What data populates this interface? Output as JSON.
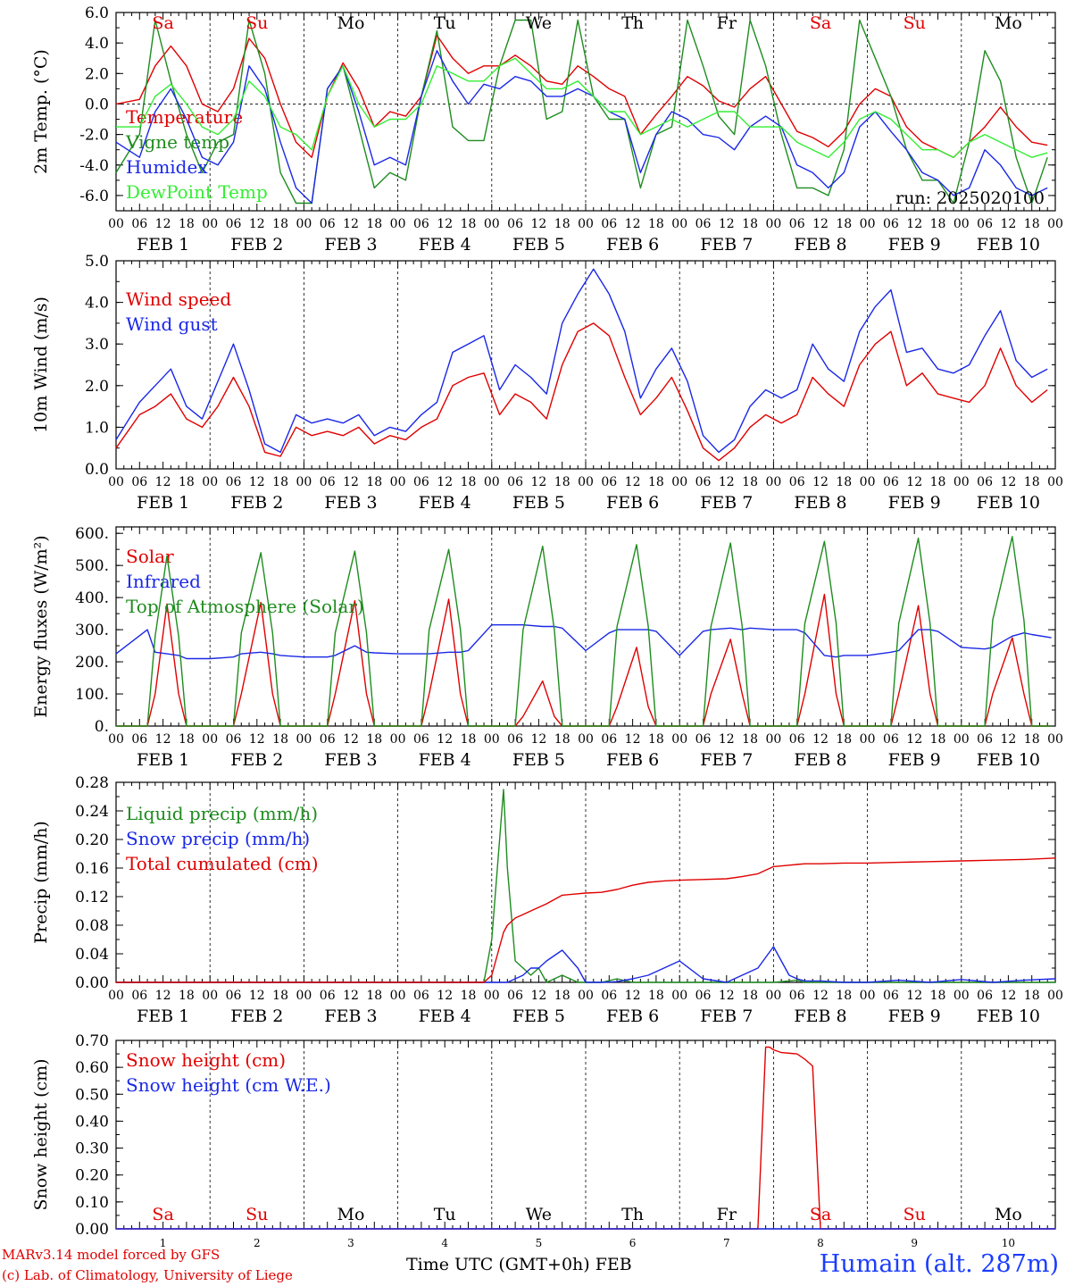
{
  "colors": {
    "red": "#e00000",
    "green": "#1e8c1e",
    "blue": "#1a28e6",
    "lightgreen": "#33ee33"
  },
  "hour_labels": [
    "00",
    "06",
    "12",
    "18"
  ],
  "end_hour_label": "00",
  "days": [
    {
      "date": "FEB  1",
      "num": "1",
      "dow": "Sa",
      "weekend": true
    },
    {
      "date": "FEB  2",
      "num": "2",
      "dow": "Su",
      "weekend": true
    },
    {
      "date": "FEB  3",
      "num": "3",
      "dow": "Mo",
      "weekend": false
    },
    {
      "date": "FEB  4",
      "num": "4",
      "dow": "Tu",
      "weekend": false
    },
    {
      "date": "FEB  5",
      "num": "5",
      "dow": "We",
      "weekend": false
    },
    {
      "date": "FEB  6",
      "num": "6",
      "dow": "Th",
      "weekend": false
    },
    {
      "date": "FEB  7",
      "num": "7",
      "dow": "Fr",
      "weekend": false
    },
    {
      "date": "FEB  8",
      "num": "8",
      "dow": "Sa",
      "weekend": true
    },
    {
      "date": "FEB  9",
      "num": "9",
      "dow": "Su",
      "weekend": true
    },
    {
      "date": "FEB 10",
      "num": "10",
      "dow": "Mo",
      "weekend": false
    }
  ],
  "footer": {
    "credit1": "MARv3.14 model forced by GFS",
    "credit2": "(c) Lab. of Climatology, University of Liege",
    "xlabel": "Time UTC (GMT+0h) FEB",
    "station": "Humain (alt. 287m)"
  },
  "chart_data": [
    {
      "type": "line",
      "ylabel": "2m Temp. (°C)",
      "ylim": [
        -7,
        6
      ],
      "yticks": [
        "6.0",
        "4.0",
        "2.0",
        "0.0",
        "-2.0",
        "-4.0",
        "-6.0"
      ],
      "ytick_values": [
        6,
        4,
        2,
        0,
        -2,
        -4,
        -6
      ],
      "zero_line": true,
      "annotation": "run: 2025020100",
      "x_hours": [
        0,
        6,
        10,
        14,
        18,
        22,
        26,
        30,
        34,
        38,
        42,
        46,
        50,
        54,
        58,
        62,
        66,
        70,
        74,
        78,
        82,
        86,
        90,
        94,
        98,
        102,
        106,
        110,
        114,
        118,
        122,
        126,
        130,
        134,
        138,
        142,
        146,
        150,
        154,
        158,
        162,
        166,
        170,
        174,
        178,
        182,
        186,
        190,
        194,
        198,
        202,
        206,
        210,
        214,
        218,
        222,
        226,
        230,
        234,
        238
      ],
      "series": [
        {
          "name": "Temperature",
          "color": "red",
          "values": [
            0.0,
            0.3,
            2.5,
            3.8,
            2.5,
            0.0,
            -0.5,
            1.0,
            4.3,
            3.0,
            0.0,
            -2.5,
            -3.5,
            0.5,
            2.7,
            1.0,
            -1.5,
            -0.5,
            -0.8,
            0.5,
            4.5,
            3.0,
            2.0,
            2.5,
            2.5,
            3.2,
            2.5,
            1.5,
            1.3,
            2.5,
            1.8,
            1.0,
            0.5,
            -2.0,
            -0.7,
            0.5,
            1.8,
            1.2,
            0.2,
            -0.2,
            1.0,
            1.8,
            0.0,
            -1.8,
            -2.2,
            -2.8,
            -1.8,
            0.0,
            1.0,
            0.5,
            -1.5,
            -2.5,
            -3.0,
            -3.5,
            -2.5,
            -1.5,
            -0.2,
            -1.5,
            -2.5,
            -2.7
          ]
        },
        {
          "name": "Vigne temp",
          "color": "green",
          "values": [
            -4.5,
            -2.0,
            5.5,
            1.5,
            -2.0,
            -4.5,
            -2.5,
            -2.0,
            5.5,
            2.0,
            -4.5,
            -6.5,
            -6.5,
            1.0,
            2.5,
            -1.5,
            -5.5,
            -4.5,
            -5.0,
            0.5,
            4.8,
            -1.5,
            -2.4,
            -2.4,
            2.5,
            5.5,
            5.5,
            -1.0,
            -0.5,
            5.5,
            0.5,
            -1.0,
            -1.0,
            -5.5,
            -2.0,
            -1.5,
            5.5,
            2.5,
            -0.8,
            -2.0,
            5.5,
            2.5,
            -2.0,
            -5.5,
            -5.5,
            -6.0,
            -3.0,
            5.5,
            3.0,
            0.5,
            -3.0,
            -5.0,
            -5.0,
            -6.5,
            -2.5,
            3.5,
            1.5,
            -3.5,
            -6.5,
            -3.5
          ]
        },
        {
          "name": "Humidex",
          "color": "blue",
          "values": [
            -2.5,
            -3.5,
            -0.5,
            1.0,
            -1.0,
            -3.5,
            -4.0,
            -2.5,
            2.5,
            1.0,
            -2.5,
            -5.5,
            -6.5,
            1.0,
            2.5,
            -0.5,
            -4.0,
            -3.5,
            -4.0,
            0.5,
            3.5,
            1.5,
            0.0,
            1.3,
            1.0,
            1.8,
            1.5,
            0.5,
            0.5,
            1.0,
            0.5,
            -0.5,
            -1.0,
            -4.5,
            -2.0,
            -0.5,
            -1.0,
            -2.0,
            -2.2,
            -3.0,
            -1.5,
            -0.8,
            -1.5,
            -4.0,
            -4.5,
            -5.5,
            -4.5,
            -1.5,
            -0.5,
            -1.8,
            -3.0,
            -4.5,
            -5.0,
            -6.0,
            -5.5,
            -3.0,
            -4.0,
            -5.5,
            -6.0,
            -5.5
          ]
        },
        {
          "name": "DewPoint Temp",
          "color": "lightgreen",
          "values": [
            -1.5,
            -1.5,
            0.5,
            1.3,
            0.0,
            -1.5,
            -2.0,
            -1.0,
            1.5,
            0.5,
            -1.5,
            -2.0,
            -3.0,
            0.5,
            2.5,
            0.0,
            -1.5,
            -1.0,
            -1.0,
            0.0,
            2.5,
            2.0,
            1.5,
            1.5,
            2.5,
            3.0,
            2.0,
            1.0,
            1.0,
            1.5,
            0.5,
            -0.5,
            -0.5,
            -2.0,
            -1.5,
            -1.0,
            -1.5,
            -1.0,
            -0.5,
            -0.5,
            -1.5,
            -1.5,
            -1.5,
            -2.5,
            -3.0,
            -3.5,
            -2.5,
            -1.0,
            -0.5,
            -1.0,
            -2.0,
            -3.0,
            -3.0,
            -3.5,
            -2.5,
            -2.0,
            -2.5,
            -3.0,
            -3.5,
            -3.2
          ]
        }
      ]
    },
    {
      "type": "line",
      "ylabel": "10m Wind (m/s)",
      "ylim": [
        0,
        5
      ],
      "yticks": [
        "5.0",
        "4.0",
        "3.0",
        "2.0",
        "1.0",
        "0.0"
      ],
      "ytick_values": [
        5,
        4,
        3,
        2,
        1,
        0
      ],
      "x_hours": [
        0,
        6,
        10,
        14,
        18,
        22,
        26,
        30,
        34,
        38,
        42,
        46,
        50,
        54,
        58,
        62,
        66,
        70,
        74,
        78,
        82,
        86,
        90,
        94,
        98,
        102,
        106,
        110,
        114,
        118,
        122,
        126,
        130,
        134,
        138,
        142,
        146,
        150,
        154,
        158,
        162,
        166,
        170,
        174,
        178,
        182,
        186,
        190,
        194,
        198,
        202,
        206,
        210,
        214,
        218,
        222,
        226,
        230,
        234,
        238
      ],
      "series": [
        {
          "name": "Wind speed",
          "color": "red",
          "values": [
            0.5,
            1.3,
            1.5,
            1.8,
            1.2,
            1.0,
            1.5,
            2.2,
            1.5,
            0.4,
            0.3,
            1.0,
            0.8,
            0.9,
            0.8,
            1.0,
            0.6,
            0.8,
            0.7,
            1.0,
            1.2,
            2.0,
            2.2,
            2.3,
            1.3,
            1.8,
            1.6,
            1.2,
            2.5,
            3.3,
            3.5,
            3.2,
            2.2,
            1.3,
            1.7,
            2.2,
            1.4,
            0.5,
            0.2,
            0.5,
            1.0,
            1.3,
            1.1,
            1.3,
            2.2,
            1.8,
            1.5,
            2.5,
            3.0,
            3.3,
            2.0,
            2.3,
            1.8,
            1.7,
            1.6,
            2.0,
            2.9,
            2.0,
            1.6,
            1.9
          ]
        },
        {
          "name": "Wind gust",
          "color": "blue",
          "values": [
            0.7,
            1.6,
            2.0,
            2.4,
            1.5,
            1.2,
            2.1,
            3.0,
            1.9,
            0.6,
            0.4,
            1.3,
            1.1,
            1.2,
            1.1,
            1.3,
            0.8,
            1.0,
            0.9,
            1.3,
            1.6,
            2.8,
            3.0,
            3.2,
            1.9,
            2.5,
            2.2,
            1.8,
            3.5,
            4.2,
            4.8,
            4.2,
            3.3,
            1.7,
            2.4,
            2.9,
            2.1,
            0.8,
            0.4,
            0.7,
            1.5,
            1.9,
            1.7,
            1.9,
            3.0,
            2.4,
            2.1,
            3.3,
            3.9,
            4.3,
            2.8,
            2.9,
            2.4,
            2.3,
            2.5,
            3.2,
            3.8,
            2.6,
            2.2,
            2.4
          ]
        }
      ]
    },
    {
      "type": "line",
      "ylabel": "Energy fluxes (W/m²)",
      "ylim": [
        0,
        620
      ],
      "yticks": [
        "600.",
        "500.",
        "400.",
        "300.",
        "200.",
        "100.",
        "0."
      ],
      "ytick_values": [
        600,
        500,
        400,
        300,
        200,
        100,
        0
      ],
      "x_hours": [
        0,
        8,
        10,
        13,
        16,
        18,
        24,
        30,
        32,
        37,
        40,
        42,
        48,
        54,
        56,
        61,
        64,
        66,
        72,
        78,
        80,
        85,
        88,
        90,
        96,
        102,
        104,
        109,
        112,
        114,
        120,
        126,
        128,
        133,
        136,
        138,
        144,
        150,
        152,
        157,
        160,
        162,
        168,
        174,
        176,
        181,
        184,
        186,
        192,
        198,
        200,
        205,
        208,
        210,
        216,
        222,
        224,
        229,
        232,
        234,
        239
      ],
      "series": [
        {
          "name": "Solar",
          "color": "red",
          "values": [
            0,
            0,
            100,
            380,
            100,
            0,
            0,
            0,
            100,
            385,
            100,
            0,
            0,
            0,
            100,
            390,
            100,
            0,
            0,
            0,
            100,
            395,
            100,
            0,
            0,
            0,
            30,
            140,
            30,
            0,
            0,
            0,
            60,
            245,
            60,
            0,
            0,
            0,
            100,
            270,
            100,
            0,
            0,
            0,
            100,
            410,
            100,
            0,
            0,
            0,
            100,
            375,
            100,
            0,
            0,
            0,
            100,
            275,
            100,
            0,
            0
          ]
        },
        {
          "name": "Infrared",
          "color": "blue",
          "values": [
            225,
            300,
            230,
            225,
            220,
            210,
            210,
            215,
            225,
            230,
            225,
            220,
            215,
            215,
            220,
            250,
            230,
            228,
            225,
            225,
            225,
            230,
            230,
            235,
            315,
            315,
            315,
            310,
            310,
            305,
            235,
            290,
            300,
            300,
            300,
            295,
            220,
            295,
            300,
            305,
            300,
            305,
            300,
            300,
            290,
            220,
            215,
            220,
            220,
            230,
            235,
            300,
            300,
            295,
            245,
            240,
            245,
            280,
            290,
            285,
            275
          ]
        },
        {
          "name": "Top of Atmosphere (Solar)",
          "color": "green",
          "values": [
            0,
            0,
            280,
            530,
            280,
            0,
            0,
            0,
            290,
            540,
            290,
            0,
            0,
            0,
            290,
            545,
            290,
            0,
            0,
            0,
            300,
            550,
            300,
            0,
            0,
            0,
            300,
            560,
            300,
            0,
            0,
            0,
            310,
            565,
            310,
            0,
            0,
            0,
            310,
            570,
            310,
            0,
            0,
            0,
            320,
            575,
            320,
            0,
            0,
            0,
            320,
            585,
            320,
            0,
            0,
            0,
            330,
            590,
            330,
            0,
            0
          ]
        }
      ]
    },
    {
      "type": "line",
      "ylabel": "Precip (mm/h)",
      "ylim": [
        0,
        0.28
      ],
      "yticks": [
        "0.28",
        "0.24",
        "0.20",
        "0.16",
        "0.12",
        "0.08",
        "0.04",
        "0.00"
      ],
      "ytick_values": [
        0.28,
        0.24,
        0.2,
        0.16,
        0.12,
        0.08,
        0.04,
        0
      ],
      "x_hours": [
        0,
        48,
        94,
        96,
        98,
        99,
        100,
        102,
        104,
        106,
        108,
        110,
        114,
        118,
        120,
        124,
        128,
        132,
        136,
        140,
        144,
        150,
        156,
        160,
        164,
        168,
        172,
        174,
        176,
        180,
        186,
        192,
        200,
        208,
        216,
        224,
        232,
        240
      ],
      "series": [
        {
          "name": "Liquid precip (mm/h)",
          "color": "green",
          "values": [
            0,
            0,
            0,
            0.06,
            0.2,
            0.27,
            0.16,
            0.03,
            0.02,
            0.01,
            0.02,
            0,
            0.01,
            0,
            0,
            0,
            0.005,
            0,
            0,
            0,
            0,
            0,
            0,
            0,
            0,
            0,
            0.002,
            0.003,
            0,
            0,
            0,
            0,
            0,
            0,
            0,
            0,
            0,
            0
          ]
        },
        {
          "name": "Snow precip (mm/h)",
          "color": "blue",
          "values": [
            0,
            0,
            0,
            0,
            0,
            0,
            0,
            0.005,
            0.01,
            0.02,
            0.02,
            0.03,
            0.045,
            0.02,
            0,
            0,
            0.001,
            0.005,
            0.01,
            0.02,
            0.03,
            0.005,
            0,
            0.01,
            0.02,
            0.05,
            0.01,
            0.005,
            0.002,
            0.002,
            0,
            0,
            0.003,
            0,
            0.004,
            0,
            0.003,
            0.005
          ]
        },
        {
          "name": "Total cumulated (cm)",
          "color": "red",
          "values": [
            0,
            0,
            0,
            0.01,
            0.05,
            0.07,
            0.08,
            0.09,
            0.095,
            0.1,
            0.105,
            0.11,
            0.122,
            0.124,
            0.125,
            0.126,
            0.13,
            0.136,
            0.14,
            0.142,
            0.143,
            0.144,
            0.145,
            0.148,
            0.152,
            0.162,
            0.164,
            0.165,
            0.166,
            0.166,
            0.167,
            0.167,
            0.168,
            0.169,
            0.17,
            0.171,
            0.172,
            0.174
          ]
        }
      ]
    },
    {
      "type": "line",
      "ylabel": "Snow height (cm)",
      "ylim": [
        0,
        0.7
      ],
      "yticks": [
        "0.70",
        "0.60",
        "0.50",
        "0.40",
        "0.30",
        "0.20",
        "0.10",
        "0.00"
      ],
      "ytick_values": [
        0.7,
        0.6,
        0.5,
        0.4,
        0.3,
        0.2,
        0.1,
        0
      ],
      "x_hours": [
        0,
        164,
        166,
        167,
        168,
        170,
        174,
        176,
        178,
        179,
        180,
        240
      ],
      "series": [
        {
          "name": "Snow height (cm)",
          "color": "red",
          "values": [
            0,
            0,
            0.675,
            0.675,
            0.665,
            0.655,
            0.65,
            0.63,
            0.605,
            0.3,
            0,
            0
          ]
        },
        {
          "name": "Snow height (cm W.E.)",
          "color": "blue",
          "values": [
            0,
            0,
            0,
            0,
            0,
            0,
            0,
            0,
            0,
            0,
            0,
            0
          ]
        }
      ]
    }
  ]
}
